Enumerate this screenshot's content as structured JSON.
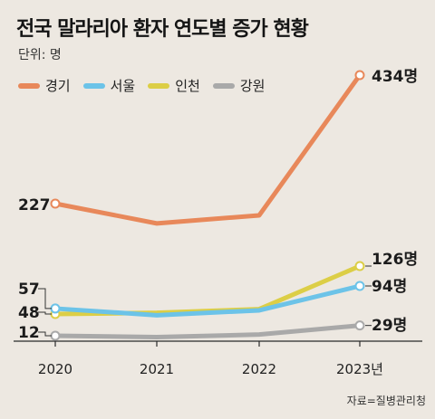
{
  "title": "전국 말라리아 환자 연도별 증가 현황",
  "unit": "단위: 명",
  "source": "자료=질병관리청",
  "chart_data": {
    "type": "line",
    "categories": [
      "2020",
      "2021",
      "2022",
      "2023년"
    ],
    "series": [
      {
        "name": "경기",
        "color": "#e8885a",
        "values": [
          227,
          195,
          208,
          434
        ],
        "start_label": "227",
        "end_label": "434명"
      },
      {
        "name": "서울",
        "color": "#6cc3e8",
        "values": [
          57,
          46,
          54,
          94
        ],
        "start_label": "57",
        "end_label": "94명"
      },
      {
        "name": "인천",
        "color": "#dcce46",
        "values": [
          48,
          50,
          56,
          126
        ],
        "start_label": "48",
        "end_label": "126명"
      },
      {
        "name": "강원",
        "color": "#a9a9a9",
        "values": [
          12,
          9,
          14,
          29
        ],
        "start_label": "12",
        "end_label": "29명"
      }
    ],
    "xlabel": "",
    "ylabel": "",
    "grid": false,
    "legend_position": "top-left"
  }
}
